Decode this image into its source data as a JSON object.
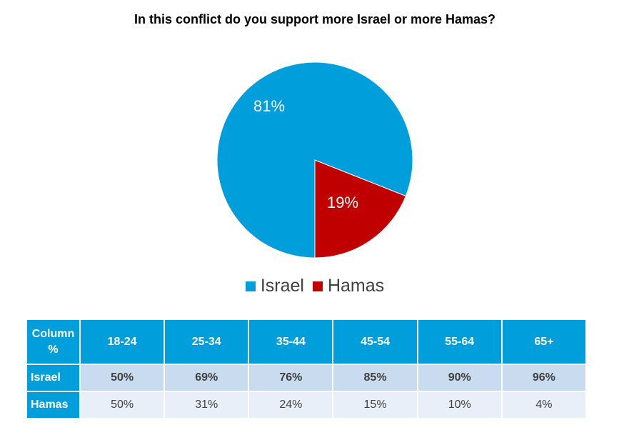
{
  "colors": {
    "israel": "#009fdb",
    "hamas": "#c00000",
    "header_bg": "#009fdb",
    "row1_bg": "#c9dbee",
    "row2_bg": "#e8eff8"
  },
  "chart_data": {
    "type": "pie",
    "title": "In this conflict do you support more Israel or more Hamas?",
    "categories": [
      "Israel",
      "Hamas"
    ],
    "values": [
      81,
      19
    ],
    "labels": [
      "81%",
      "19%"
    ],
    "legend": {
      "placement": "bottom",
      "entries": [
        "Israel",
        "Hamas"
      ]
    }
  },
  "table": {
    "corner": "Column %",
    "columns": [
      "18-24",
      "25-34",
      "35-44",
      "45-54",
      "55-64",
      "65+"
    ],
    "rows": [
      {
        "label": "Israel",
        "values": [
          "50%",
          "69%",
          "76%",
          "85%",
          "90%",
          "96%"
        ]
      },
      {
        "label": "Hamas",
        "values": [
          "50%",
          "31%",
          "24%",
          "15%",
          "10%",
          "4%"
        ]
      }
    ]
  }
}
